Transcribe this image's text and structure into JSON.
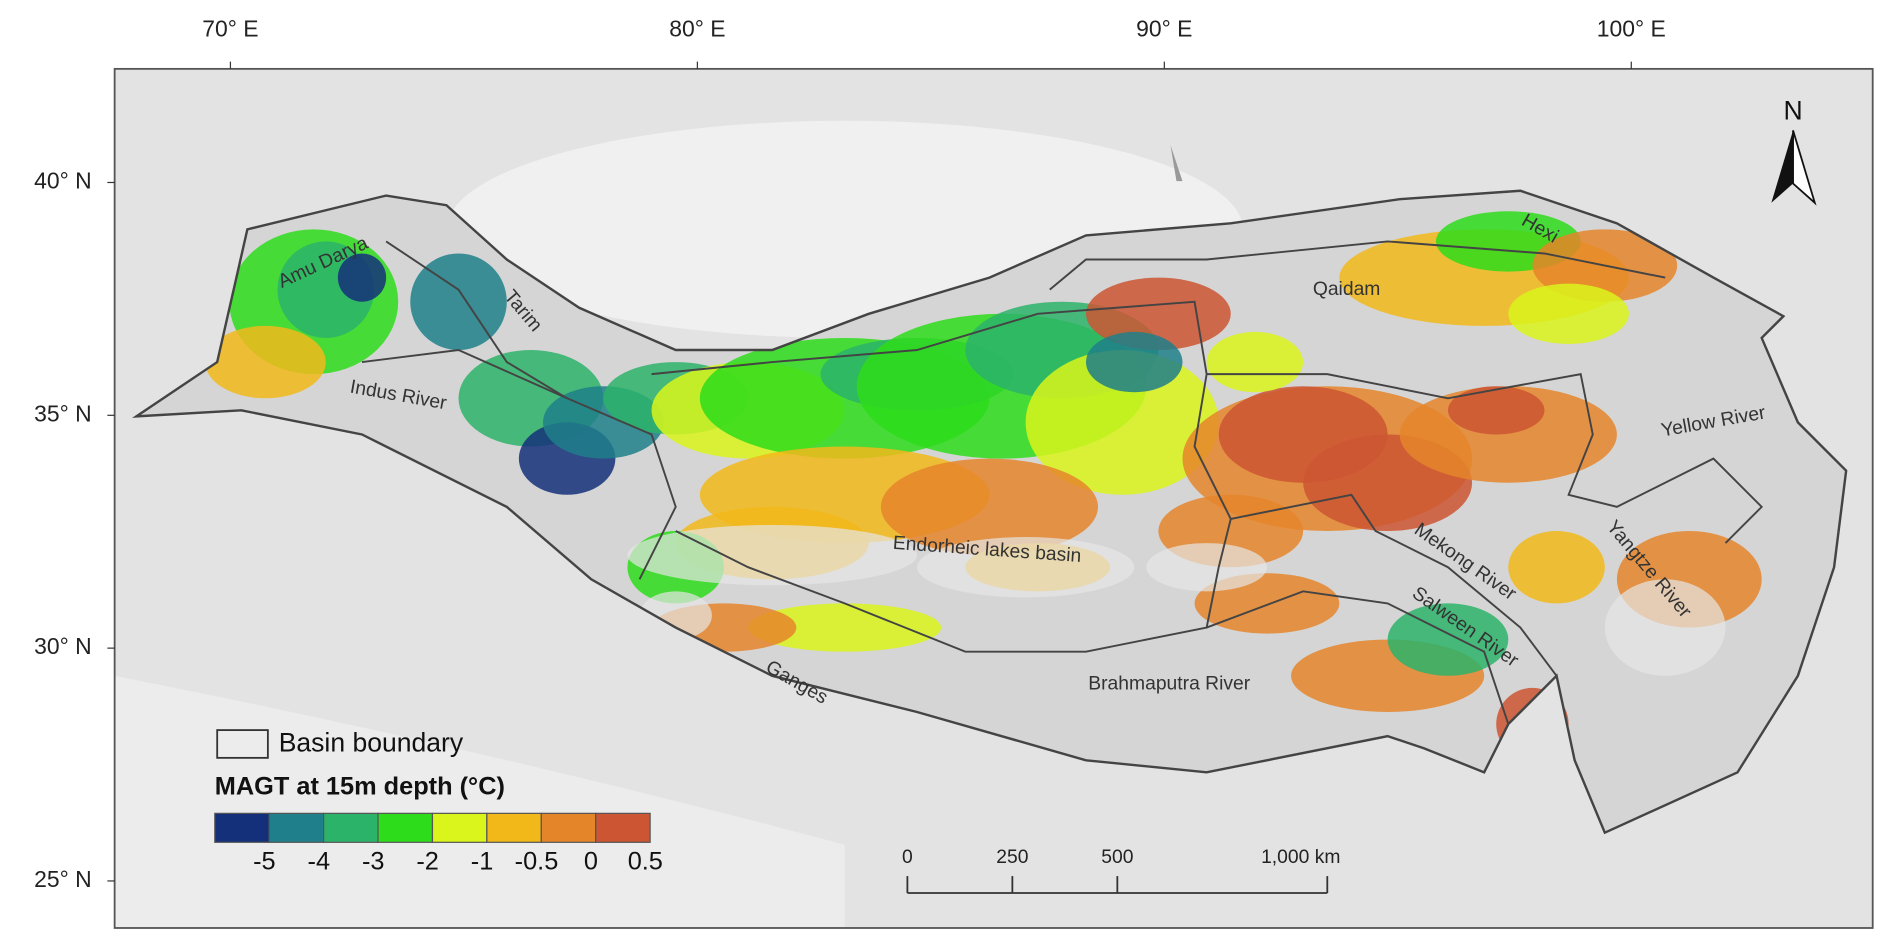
{
  "map": {
    "lon_ticks": [
      {
        "value": 70,
        "label": "70° E"
      },
      {
        "value": 80,
        "label": "80° E"
      },
      {
        "value": 90,
        "label": "90° E"
      },
      {
        "value": 100,
        "label": "100° E"
      }
    ],
    "lat_ticks": [
      {
        "value": 40,
        "label": "40° N"
      },
      {
        "value": 35,
        "label": "35° N"
      },
      {
        "value": 30,
        "label": "30° N"
      },
      {
        "value": 25,
        "label": "25° N"
      }
    ],
    "lonlim": [
      67.52,
      105.17
    ],
    "latlim": [
      23.99,
      42.44
    ],
    "north": "N",
    "basin_labels": [
      "Amu Darya",
      "Tarim",
      "Indus River",
      "Qaidam",
      "Hexi",
      "Yellow River",
      "Endorheic lakes basin",
      "Mekong River",
      "Yangtze River",
      "Salween River",
      "Ganges",
      "Brahmaputra River"
    ],
    "legend": {
      "boundary_label": "Basin boundary",
      "title": "MAGT at 15m depth (°C)",
      "colors": [
        "#15307a",
        "#1f7f8a",
        "#2bb36a",
        "#2ddc1a",
        "#d9f51b",
        "#f2b81a",
        "#e5852a",
        "#cc5533"
      ],
      "labels": [
        -5,
        -4,
        -3,
        -2,
        -1,
        -0.5,
        0,
        0.5
      ]
    },
    "scale_bar": {
      "ticks": [
        0,
        250,
        500,
        {
          "value": 1000,
          "label": "1,000 km"
        }
      ]
    }
  }
}
